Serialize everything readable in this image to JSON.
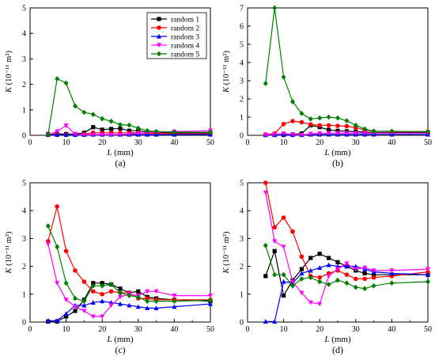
{
  "chart_data": [
    {
      "panel": "(a)",
      "type": "line",
      "xlabel": "L (mm)",
      "ylabel": "K (10⁻¹¹ m²)",
      "xlim": [
        0,
        50
      ],
      "ylim": [
        0,
        5
      ],
      "xticks": [
        0,
        10,
        20,
        30,
        40,
        50
      ],
      "yticks": [
        0,
        1,
        2,
        3,
        4,
        5
      ],
      "legend": "top-right",
      "series": [
        {
          "name": "random 1",
          "color": "#000000",
          "marker": "square",
          "x": [
            5,
            7.5,
            10,
            12.5,
            15,
            17.5,
            20,
            22.5,
            25,
            27.5,
            30,
            32.5,
            35,
            40,
            50
          ],
          "y": [
            0.05,
            0.05,
            0.05,
            0.05,
            0.1,
            0.32,
            0.22,
            0.25,
            0.27,
            0.18,
            0.18,
            0.12,
            0.12,
            0.1,
            0.1
          ]
        },
        {
          "name": "random 2",
          "color": "#ff0000",
          "marker": "circle",
          "x": [
            5,
            7.5,
            10,
            12.5,
            15,
            17.5,
            20,
            22.5,
            25,
            27.5,
            30,
            32.5,
            35,
            40,
            50
          ],
          "y": [
            0.02,
            0.02,
            0.02,
            0.02,
            0.05,
            0.1,
            0.1,
            0.1,
            0.1,
            0.1,
            0.1,
            0.08,
            0.08,
            0.06,
            0.06
          ]
        },
        {
          "name": "random 3",
          "color": "#0000ff",
          "marker": "triangle",
          "x": [
            5,
            7.5,
            10,
            12.5,
            15,
            17.5,
            20,
            22.5,
            25,
            27.5,
            30,
            32.5,
            35,
            40,
            50
          ],
          "y": [
            0.02,
            0.02,
            0.02,
            0.02,
            0.02,
            0.03,
            0.03,
            0.03,
            0.03,
            0.03,
            0.03,
            0.03,
            0.03,
            0.03,
            0.03
          ]
        },
        {
          "name": "random 4",
          "color": "#ff00ff",
          "marker": "triangle-down",
          "x": [
            5,
            7.5,
            10,
            12.5,
            15,
            17.5,
            20,
            22.5,
            25,
            27.5,
            30,
            32.5,
            35,
            40,
            50
          ],
          "y": [
            0.02,
            0.15,
            0.38,
            0.05,
            0.02,
            0.02,
            0.02,
            0.02,
            0.03,
            0.05,
            0.08,
            0.1,
            0.12,
            0.15,
            0.18
          ]
        },
        {
          "name": "random 5",
          "color": "#008000",
          "marker": "diamond",
          "x": [
            5,
            7.5,
            10,
            12.5,
            15,
            17.5,
            20,
            22.5,
            25,
            27.5,
            30,
            32.5,
            35,
            40,
            50
          ],
          "y": [
            0.02,
            2.22,
            2.05,
            1.15,
            0.9,
            0.82,
            0.65,
            0.55,
            0.42,
            0.4,
            0.28,
            0.18,
            0.15,
            0.12,
            0.12
          ]
        }
      ]
    },
    {
      "panel": "(b)",
      "type": "line",
      "xlabel": "L (mm)",
      "ylabel": "K (10⁻¹¹ m²)",
      "xlim": [
        0,
        50
      ],
      "ylim": [
        0,
        7
      ],
      "xticks": [
        0,
        10,
        20,
        30,
        40,
        50
      ],
      "yticks": [
        0,
        1,
        2,
        3,
        4,
        5,
        6,
        7
      ],
      "series": [
        {
          "name": "random 1",
          "color": "#000000",
          "marker": "square",
          "x": [
            5,
            7.5,
            10,
            12.5,
            15,
            17.5,
            20,
            22.5,
            25,
            27.5,
            30,
            32.5,
            35,
            40,
            50
          ],
          "y": [
            0.02,
            0.02,
            0.02,
            0.05,
            0.1,
            0.55,
            0.45,
            0.3,
            0.25,
            0.22,
            0.2,
            0.18,
            0.15,
            0.15,
            0.15
          ]
        },
        {
          "name": "random 2",
          "color": "#ff0000",
          "marker": "circle",
          "x": [
            5,
            7.5,
            10,
            12.5,
            15,
            17.5,
            20,
            22.5,
            25,
            27.5,
            30,
            32.5,
            35,
            40,
            50
          ],
          "y": [
            0.05,
            0.1,
            0.62,
            0.78,
            0.72,
            0.6,
            0.55,
            0.55,
            0.52,
            0.5,
            0.42,
            0.3,
            0.22,
            0.2,
            0.2
          ]
        },
        {
          "name": "random 3",
          "color": "#0000ff",
          "marker": "triangle",
          "x": [
            5,
            7.5,
            10,
            12.5,
            15,
            17.5,
            20,
            22.5,
            25,
            27.5,
            30,
            32.5,
            35,
            40,
            50
          ],
          "y": [
            0.02,
            0.02,
            0.02,
            0.02,
            0.02,
            0.05,
            0.05,
            0.05,
            0.05,
            0.05,
            0.05,
            0.05,
            0.05,
            0.05,
            0.05
          ]
        },
        {
          "name": "random 4",
          "color": "#ff00ff",
          "marker": "triangle-down",
          "x": [
            5,
            7.5,
            10,
            12.5,
            15,
            17.5,
            20,
            22.5,
            25,
            27.5,
            30,
            32.5,
            35,
            40,
            50
          ],
          "y": [
            0.02,
            0.05,
            0.1,
            0.05,
            0.02,
            0.08,
            0.1,
            0.12,
            0.12,
            0.12,
            0.12,
            0.12,
            0.12,
            0.12,
            0.12
          ]
        },
        {
          "name": "random 5",
          "color": "#008000",
          "marker": "diamond",
          "x": [
            5,
            7.5,
            10,
            12.5,
            15,
            17.5,
            20,
            22.5,
            25,
            27.5,
            30,
            32.5,
            35,
            40,
            50
          ],
          "y": [
            2.85,
            7.0,
            3.2,
            1.85,
            1.2,
            0.9,
            0.95,
            1.0,
            0.95,
            0.8,
            0.55,
            0.35,
            0.22,
            0.22,
            0.2
          ]
        }
      ]
    },
    {
      "panel": "(c)",
      "type": "line",
      "xlabel": "L (mm)",
      "ylabel": "K (10⁻¹¹ m²)",
      "xlim": [
        0,
        50
      ],
      "ylim": [
        0,
        5
      ],
      "xticks": [
        0,
        10,
        20,
        30,
        40,
        50
      ],
      "yticks": [
        0,
        1,
        2,
        3,
        4,
        5
      ],
      "series": [
        {
          "name": "random 1",
          "color": "#000000",
          "marker": "square",
          "x": [
            5,
            7.5,
            10,
            12.5,
            15,
            17.5,
            20,
            22.5,
            25,
            27.5,
            30,
            32.5,
            35,
            40,
            50
          ],
          "y": [
            0.02,
            0.02,
            0.2,
            0.4,
            0.8,
            1.4,
            1.4,
            1.35,
            1.2,
            1.05,
            1.1,
            0.9,
            0.85,
            0.8,
            0.75
          ]
        },
        {
          "name": "random 2",
          "color": "#ff0000",
          "marker": "circle",
          "x": [
            5,
            7.5,
            10,
            12.5,
            15,
            17.5,
            20,
            22.5,
            25,
            27.5,
            30,
            32.5,
            35,
            40,
            50
          ],
          "y": [
            2.9,
            4.15,
            2.55,
            1.85,
            1.45,
            1.1,
            1.0,
            1.1,
            1.05,
            1.05,
            0.85,
            0.85,
            0.8,
            0.8,
            0.8
          ]
        },
        {
          "name": "random 3",
          "color": "#0000ff",
          "marker": "triangle",
          "x": [
            5,
            7.5,
            10,
            12.5,
            15,
            17.5,
            20,
            22.5,
            25,
            27.5,
            30,
            32.5,
            35,
            40,
            50
          ],
          "y": [
            0.05,
            0.05,
            0.3,
            0.6,
            0.6,
            0.7,
            0.75,
            0.7,
            0.65,
            0.6,
            0.55,
            0.5,
            0.5,
            0.55,
            0.65
          ]
        },
        {
          "name": "random 4",
          "color": "#ff00ff",
          "marker": "triangle-down",
          "x": [
            5,
            7.5,
            10,
            12.5,
            15,
            17.5,
            20,
            22.5,
            25,
            27.5,
            30,
            32.5,
            35,
            40,
            50
          ],
          "y": [
            2.8,
            1.4,
            0.8,
            0.55,
            0.4,
            0.2,
            0.2,
            0.6,
            0.9,
            1.0,
            0.95,
            1.1,
            1.1,
            0.95,
            0.95
          ]
        },
        {
          "name": "random 5",
          "color": "#008000",
          "marker": "diamond",
          "x": [
            5,
            7.5,
            10,
            12.5,
            15,
            17.5,
            20,
            22.5,
            25,
            27.5,
            30,
            32.5,
            35,
            40,
            50
          ],
          "y": [
            3.45,
            2.7,
            1.4,
            0.85,
            0.75,
            1.3,
            1.3,
            1.35,
            1.05,
            0.95,
            0.9,
            0.75,
            0.75,
            0.75,
            0.78
          ]
        }
      ]
    },
    {
      "panel": "(d)",
      "type": "line",
      "xlabel": "L (mm)",
      "ylabel": "K (10⁻¹¹ m²)",
      "xlim": [
        0,
        50
      ],
      "ylim": [
        0,
        5
      ],
      "xticks": [
        0,
        10,
        20,
        30,
        40,
        50
      ],
      "yticks": [
        0,
        1,
        2,
        3,
        4,
        5
      ],
      "series": [
        {
          "name": "random 1",
          "color": "#000000",
          "marker": "square",
          "x": [
            5,
            7.5,
            10,
            12.5,
            15,
            17.5,
            20,
            22.5,
            25,
            27.5,
            30,
            32.5,
            35,
            40,
            50
          ],
          "y": [
            1.65,
            2.55,
            0.95,
            1.5,
            1.9,
            2.3,
            2.45,
            2.3,
            2.15,
            2.0,
            1.85,
            1.75,
            1.7,
            1.7,
            1.7
          ]
        },
        {
          "name": "random 2",
          "color": "#ff0000",
          "marker": "circle",
          "x": [
            5,
            7.5,
            10,
            12.5,
            15,
            17.5,
            20,
            22.5,
            25,
            27.5,
            30,
            32.5,
            35,
            40,
            50
          ],
          "y": [
            5.0,
            3.4,
            3.75,
            3.25,
            2.35,
            1.65,
            1.6,
            1.75,
            1.85,
            1.7,
            1.55,
            1.55,
            1.6,
            1.65,
            1.8
          ]
        },
        {
          "name": "random 3",
          "color": "#0000ff",
          "marker": "triangle",
          "x": [
            5,
            7.5,
            10,
            12.5,
            15,
            17.5,
            20,
            22.5,
            25,
            27.5,
            30,
            32.5,
            35,
            40,
            50
          ],
          "y": [
            0.02,
            0.02,
            1.45,
            1.4,
            1.75,
            1.85,
            1.95,
            2.05,
            2.0,
            2.0,
            2.0,
            1.9,
            1.8,
            1.75,
            1.7
          ]
        },
        {
          "name": "random 4",
          "color": "#ff00ff",
          "marker": "triangle-down",
          "x": [
            5,
            7.5,
            10,
            12.5,
            15,
            17.5,
            20,
            22.5,
            25,
            27.5,
            30,
            32.5,
            35,
            40,
            50
          ],
          "y": [
            4.65,
            2.9,
            2.7,
            1.45,
            1.05,
            0.7,
            0.65,
            1.65,
            1.9,
            2.1,
            1.9,
            1.95,
            1.85,
            1.85,
            1.9
          ]
        },
        {
          "name": "random 5",
          "color": "#008000",
          "marker": "diamond",
          "x": [
            5,
            7.5,
            10,
            12.5,
            15,
            17.5,
            20,
            22.5,
            25,
            27.5,
            30,
            32.5,
            35,
            40,
            50
          ],
          "y": [
            2.75,
            1.7,
            1.7,
            1.3,
            1.55,
            1.6,
            1.45,
            1.35,
            1.5,
            1.4,
            1.25,
            1.2,
            1.3,
            1.4,
            1.45
          ]
        }
      ]
    }
  ]
}
